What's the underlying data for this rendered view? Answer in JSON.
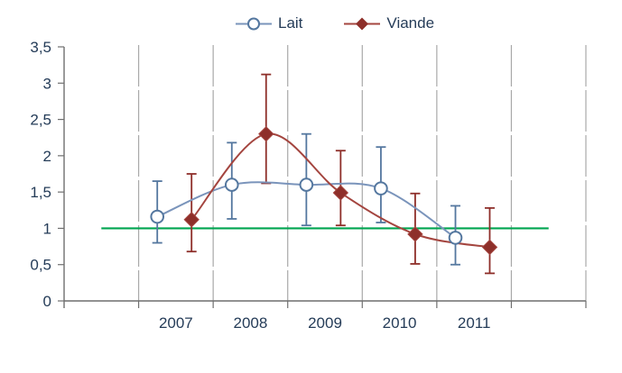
{
  "chart_data": {
    "type": "line",
    "title": "",
    "xlabel": "",
    "ylabel": "",
    "categories": [
      "2007",
      "2008",
      "2009",
      "2010",
      "2011"
    ],
    "series": [
      {
        "name": "Lait",
        "marker": "open-circle",
        "values": [
          1.16,
          1.6,
          1.6,
          1.55,
          0.87
        ],
        "error_low": [
          0.8,
          1.13,
          1.04,
          1.08,
          0.5
        ],
        "error_high": [
          1.65,
          2.18,
          2.3,
          2.12,
          1.31
        ],
        "line_color": "#7A94BB",
        "marker_color": "#54779F"
      },
      {
        "name": "Viande",
        "marker": "filled-diamond",
        "values": [
          1.12,
          2.3,
          1.49,
          0.92,
          0.74
        ],
        "error_low": [
          0.68,
          1.62,
          1.04,
          0.51,
          0.38
        ],
        "error_high": [
          1.75,
          3.12,
          2.07,
          1.48,
          1.28
        ],
        "line_color": "#A4453F",
        "marker_color": "#8E2F2A"
      }
    ],
    "reference_line": {
      "value": 1,
      "color": "#00A550"
    },
    "ylim": [
      0,
      3.5
    ],
    "y_tick_step": 0.5,
    "y_tick_labels": [
      "0",
      "0,5",
      "1",
      "1,5",
      "2",
      "2,5",
      "3",
      "3,5"
    ],
    "grid": "vertical-dashed",
    "legend_position": "top-center",
    "line_smoothing": true,
    "colors": {
      "grid": "#A9A9A9",
      "axis": "#6F6F6F",
      "text": "#253C58",
      "background": "#FFFFFF"
    }
  }
}
